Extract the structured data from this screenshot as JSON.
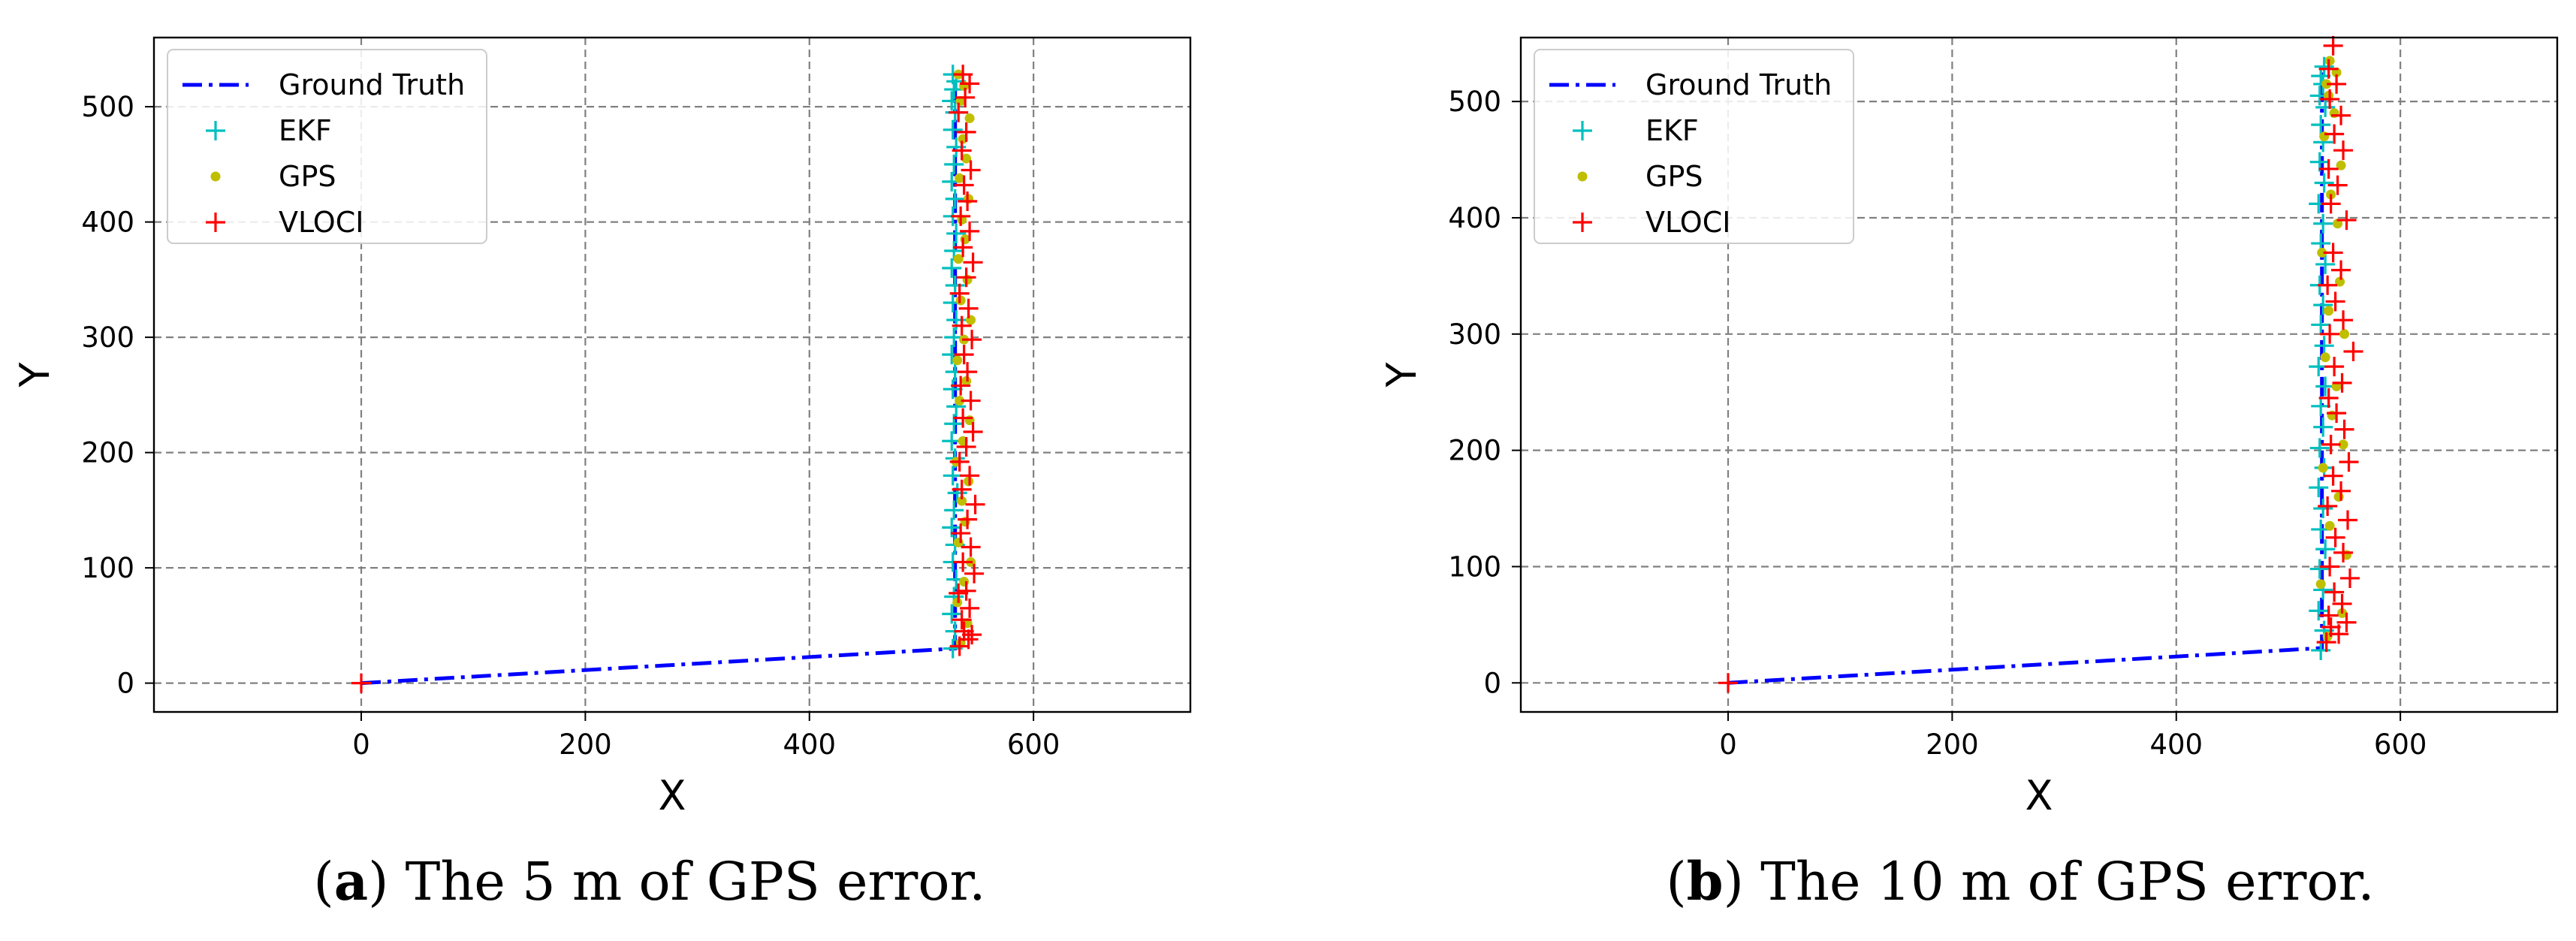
{
  "colors": {
    "ground_truth": "#0000ff",
    "ekf": "#00bfbf",
    "gps": "#bfbf00",
    "vloci": "#ff0000",
    "grid": "#808080"
  },
  "chart_data": [
    {
      "type": "line",
      "xlabel": "X",
      "ylabel": "Y",
      "xlim": [
        -185,
        740
      ],
      "ylim": [
        -25,
        560
      ],
      "xticks": [
        0,
        200,
        400,
        600
      ],
      "xtick_labels": [
        "0",
        "200",
        "400",
        "600"
      ],
      "yticks": [
        0,
        100,
        200,
        300,
        400,
        500
      ],
      "ytick_labels": [
        "0",
        "100",
        "200",
        "300",
        "400",
        "500"
      ],
      "grid": true,
      "legend_position": "top-left",
      "caption": {
        "open": "(",
        "letter": "a",
        "text": ") The 5 m of GPS error."
      },
      "series": [
        {
          "name": "Ground Truth",
          "style": "dashdot-line",
          "x": [
            0,
            530,
            530
          ],
          "y": [
            0,
            30,
            525
          ]
        },
        {
          "name": "EKF",
          "style": "plus",
          "x": [
            528,
            530,
            527,
            529,
            531,
            528,
            530,
            527,
            529,
            532,
            528,
            530,
            527,
            529,
            531,
            528,
            530,
            527,
            529,
            531,
            528,
            530,
            527,
            529,
            531,
            528,
            530,
            527,
            529,
            531,
            528,
            530,
            527,
            529,
            531,
            528
          ],
          "y": [
            30,
            45,
            60,
            75,
            90,
            105,
            120,
            135,
            150,
            165,
            180,
            195,
            210,
            225,
            240,
            255,
            270,
            285,
            300,
            315,
            330,
            345,
            360,
            375,
            390,
            405,
            420,
            435,
            450,
            465,
            480,
            495,
            505,
            515,
            522,
            528
          ]
        },
        {
          "name": "GPS",
          "style": "dot",
          "x": [
            535,
            541,
            532,
            538,
            544,
            533,
            539,
            536,
            542,
            531,
            537,
            543,
            534,
            540,
            532,
            538,
            544,
            535,
            541,
            533,
            539,
            536,
            542,
            534,
            540,
            537,
            543,
            535,
            538,
            533
          ],
          "y": [
            35,
            52,
            70,
            88,
            105,
            122,
            140,
            158,
            175,
            192,
            210,
            228,
            245,
            262,
            280,
            298,
            315,
            332,
            350,
            368,
            385,
            402,
            420,
            438,
            455,
            472,
            490,
            505,
            518,
            528
          ]
        },
        {
          "name": "VLOCI",
          "style": "plus",
          "x": [
            0,
            534,
            542,
            538,
            545,
            536,
            543,
            533,
            540,
            547,
            537,
            544,
            535,
            541,
            548,
            536,
            543,
            534,
            540,
            546,
            537,
            544,
            535,
            541,
            538,
            545,
            536,
            542,
            534,
            540,
            546,
            537,
            543,
            535,
            541,
            538,
            544,
            536,
            540,
            533,
            539,
            543,
            537
          ],
          "y": [
            0,
            32,
            38,
            45,
            42,
            55,
            65,
            78,
            80,
            95,
            105,
            118,
            130,
            142,
            155,
            168,
            180,
            192,
            205,
            218,
            230,
            245,
            258,
            270,
            285,
            298,
            310,
            325,
            338,
            352,
            365,
            378,
            392,
            405,
            418,
            432,
            445,
            462,
            478,
            495,
            508,
            520,
            528
          ]
        }
      ]
    },
    {
      "type": "line",
      "xlabel": "X",
      "ylabel": "Y",
      "xlim": [
        -185,
        740
      ],
      "ylim": [
        -25,
        555
      ],
      "xticks": [
        0,
        200,
        400,
        600
      ],
      "xtick_labels": [
        "0",
        "200",
        "400",
        "600"
      ],
      "yticks": [
        0,
        100,
        200,
        300,
        400,
        500
      ],
      "ytick_labels": [
        "0",
        "100",
        "200",
        "300",
        "400",
        "500"
      ],
      "grid": true,
      "legend_position": "top-left",
      "caption": {
        "open": "(",
        "letter": "b",
        "text": ") The 10 m of GPS error."
      },
      "series": [
        {
          "name": "Ground Truth",
          "style": "dashdot-line",
          "x": [
            0,
            530,
            530
          ],
          "y": [
            0,
            30,
            525
          ]
        },
        {
          "name": "EKF",
          "style": "plus",
          "x": [
            529,
            532,
            527,
            531,
            528,
            533,
            529,
            531,
            527,
            532,
            528,
            531,
            529,
            533,
            527,
            532,
            529,
            531,
            528,
            533,
            529,
            531,
            527,
            532,
            528,
            531,
            529,
            533,
            528,
            531,
            529,
            532
          ],
          "y": [
            28,
            45,
            62,
            80,
            98,
            115,
            132,
            150,
            168,
            185,
            202,
            220,
            238,
            255,
            272,
            290,
            308,
            325,
            342,
            360,
            378,
            395,
            412,
            430,
            448,
            465,
            480,
            495,
            505,
            515,
            522,
            530
          ]
        },
        {
          "name": "GPS",
          "style": "dot",
          "x": [
            535,
            548,
            529,
            552,
            537,
            545,
            531,
            549,
            539,
            543,
            533,
            550,
            536,
            546,
            530,
            544,
            538,
            547,
            532,
            541,
            536,
            534,
            543,
            537
          ],
          "y": [
            40,
            60,
            85,
            110,
            135,
            160,
            185,
            205,
            230,
            255,
            280,
            300,
            320,
            345,
            370,
            395,
            420,
            445,
            470,
            490,
            505,
            515,
            525,
            535
          ]
        },
        {
          "name": "VLOCI",
          "style": "plus",
          "x": [
            0,
            534,
            545,
            538,
            552,
            536,
            548,
            541,
            555,
            537,
            549,
            542,
            553,
            535,
            547,
            540,
            554,
            538,
            550,
            543,
            536,
            548,
            541,
            558,
            537,
            549,
            542,
            535,
            547,
            540,
            552,
            538,
            544,
            536,
            549,
            541,
            547,
            537,
            543,
            536,
            540
          ],
          "y": [
            0,
            35,
            42,
            48,
            52,
            58,
            68,
            78,
            90,
            100,
            112,
            125,
            140,
            152,
            165,
            178,
            190,
            205,
            218,
            232,
            245,
            258,
            272,
            285,
            300,
            312,
            328,
            342,
            355,
            370,
            398,
            412,
            428,
            442,
            458,
            472,
            488,
            502,
            515,
            528,
            548
          ]
        }
      ]
    }
  ]
}
